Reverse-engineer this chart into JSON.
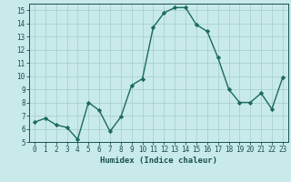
{
  "xlabel": "Humidex (Indice chaleur)",
  "x": [
    0,
    1,
    2,
    3,
    4,
    5,
    6,
    7,
    8,
    9,
    10,
    11,
    12,
    13,
    14,
    15,
    16,
    17,
    18,
    19,
    20,
    21,
    22,
    23
  ],
  "y": [
    6.5,
    6.8,
    6.3,
    6.1,
    5.2,
    8.0,
    7.4,
    5.8,
    6.9,
    9.3,
    9.8,
    13.7,
    14.8,
    15.2,
    15.2,
    13.9,
    13.4,
    11.4,
    9.0,
    8.0,
    8.0,
    8.7,
    7.5,
    9.9
  ],
  "line_color": "#1a6b5a",
  "marker": "D",
  "marker_size": 2.2,
  "line_width": 1.0,
  "bg_color": "#c8eaea",
  "grid_color": "#aad0d0",
  "tick_label_color": "#1a5050",
  "axis_label_color": "#1a5050",
  "xlim": [
    -0.5,
    23.5
  ],
  "ylim": [
    5,
    15.5
  ],
  "yticks": [
    5,
    6,
    7,
    8,
    9,
    10,
    11,
    12,
    13,
    14,
    15
  ],
  "xticks": [
    0,
    1,
    2,
    3,
    4,
    5,
    6,
    7,
    8,
    9,
    10,
    11,
    12,
    13,
    14,
    15,
    16,
    17,
    18,
    19,
    20,
    21,
    22,
    23
  ],
  "tick_fontsize": 5.5,
  "xlabel_fontsize": 6.5
}
